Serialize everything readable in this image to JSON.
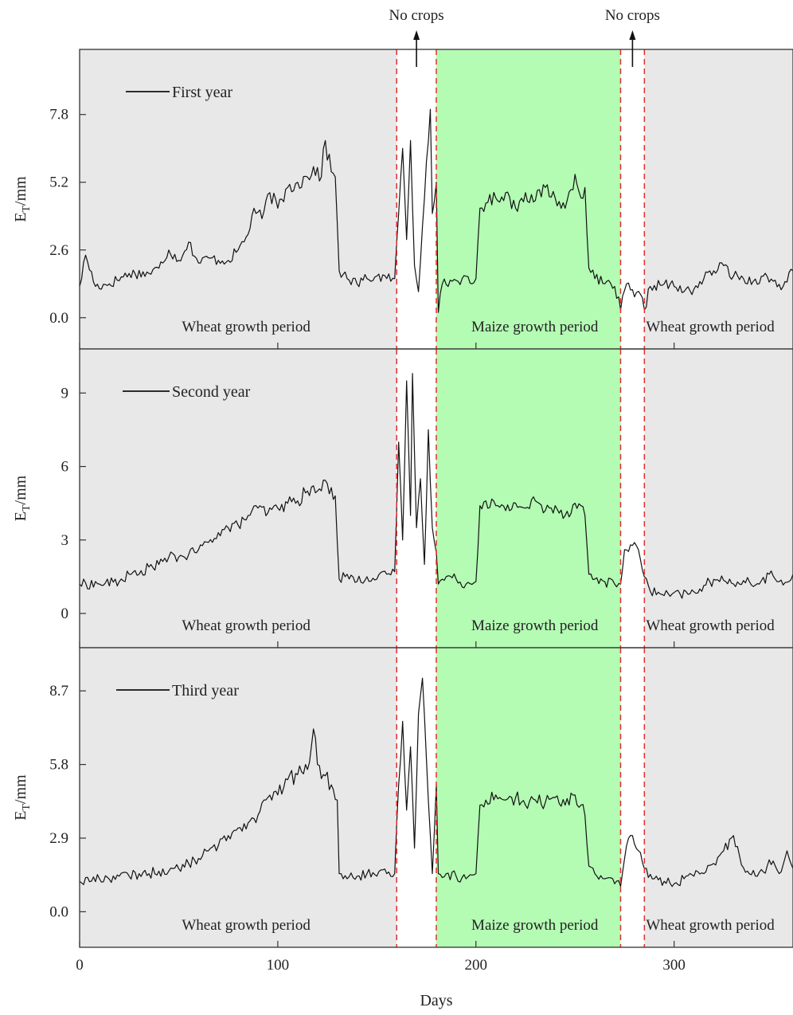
{
  "chart_data": {
    "type": "line",
    "xlabel": "Days",
    "ylabel_main": "E",
    "ylabel_sub": "T",
    "ylabel_unit": "/mm",
    "x_ticks": [
      0,
      100,
      200,
      300
    ],
    "xlim": [
      0,
      360
    ],
    "annotations": [
      "No crops",
      "No crops"
    ],
    "no_crop_arrow_days": [
      170,
      279
    ],
    "boundaries": [
      160,
      180,
      273,
      285
    ],
    "colors": {
      "wheat_shade": "#e8e8e8",
      "maize_shade": "#b4fbb4",
      "series": "#111111",
      "boundary": "#e0302f"
    },
    "panels": [
      {
        "series_name": "First year",
        "ylim": [
          -1.2,
          10.3
        ],
        "y_ticks": [
          0.0,
          2.6,
          5.2,
          7.8
        ],
        "y_tick_labels": [
          "0.0",
          "2.6",
          "5.2",
          "7.8"
        ],
        "period_labels": [
          "Wheat growth period",
          "Maize growth period",
          "Wheat growth period"
        ],
        "keypoints": [
          [
            0,
            1.2
          ],
          [
            3,
            2.4
          ],
          [
            8,
            1.2
          ],
          [
            15,
            1.3
          ],
          [
            25,
            1.7
          ],
          [
            35,
            1.7
          ],
          [
            40,
            1.9
          ],
          [
            45,
            2.6
          ],
          [
            50,
            2.2
          ],
          [
            55,
            2.9
          ],
          [
            60,
            2.1
          ],
          [
            65,
            2.3
          ],
          [
            70,
            2.2
          ],
          [
            75,
            2.2
          ],
          [
            80,
            2.6
          ],
          [
            85,
            3.2
          ],
          [
            88,
            4.2
          ],
          [
            92,
            3.8
          ],
          [
            96,
            4.8
          ],
          [
            100,
            4.2
          ],
          [
            105,
            5.0
          ],
          [
            110,
            5.2
          ],
          [
            115,
            5.4
          ],
          [
            118,
            5.8
          ],
          [
            122,
            5.4
          ],
          [
            124,
            6.8
          ],
          [
            127,
            5.6
          ],
          [
            129,
            5.4
          ],
          [
            131,
            1.8
          ],
          [
            135,
            1.5
          ],
          [
            140,
            1.3
          ],
          [
            145,
            1.5
          ],
          [
            150,
            1.6
          ],
          [
            155,
            1.5
          ],
          [
            159,
            1.5
          ],
          [
            161,
            4.0
          ],
          [
            163,
            6.5
          ],
          [
            165,
            3.0
          ],
          [
            167,
            6.8
          ],
          [
            169,
            2.0
          ],
          [
            171,
            1.0
          ],
          [
            173,
            3.5
          ],
          [
            175,
            6.0
          ],
          [
            177,
            8.0
          ],
          [
            178,
            4.0
          ],
          [
            180,
            5.2
          ],
          [
            181,
            0.2
          ],
          [
            183,
            1.3
          ],
          [
            188,
            1.4
          ],
          [
            193,
            1.5
          ],
          [
            198,
            1.3
          ],
          [
            200,
            1.5
          ],
          [
            202,
            4.2
          ],
          [
            205,
            4.4
          ],
          [
            210,
            4.6
          ],
          [
            215,
            4.8
          ],
          [
            220,
            4.2
          ],
          [
            225,
            4.8
          ],
          [
            230,
            4.5
          ],
          [
            235,
            5.0
          ],
          [
            240,
            4.6
          ],
          [
            245,
            4.2
          ],
          [
            250,
            5.5
          ],
          [
            253,
            4.6
          ],
          [
            255,
            5.0
          ],
          [
            257,
            1.9
          ],
          [
            260,
            1.5
          ],
          [
            265,
            1.3
          ],
          [
            270,
            1.2
          ],
          [
            273,
            0.3
          ],
          [
            276,
            1.3
          ],
          [
            280,
            0.8
          ],
          [
            283,
            0.9
          ],
          [
            285,
            0.3
          ],
          [
            288,
            1.2
          ],
          [
            295,
            1.3
          ],
          [
            300,
            1.2
          ],
          [
            305,
            1.0
          ],
          [
            310,
            1.1
          ],
          [
            315,
            1.5
          ],
          [
            320,
            1.8
          ],
          [
            325,
            2.0
          ],
          [
            330,
            1.6
          ],
          [
            335,
            1.5
          ],
          [
            340,
            1.4
          ],
          [
            345,
            1.6
          ],
          [
            350,
            1.4
          ],
          [
            355,
            1.2
          ],
          [
            360,
            1.8
          ]
        ]
      },
      {
        "series_name": "Second year",
        "ylim": [
          -1.4,
          10.8
        ],
        "y_ticks": [
          0,
          3,
          6,
          9
        ],
        "y_tick_labels": [
          "0",
          "3",
          "6",
          "9"
        ],
        "period_labels": [
          "Wheat growth period",
          "Maize growth period",
          "Wheat growth period"
        ],
        "keypoints": [
          [
            0,
            1.2
          ],
          [
            10,
            1.2
          ],
          [
            20,
            1.3
          ],
          [
            25,
            1.6
          ],
          [
            30,
            1.6
          ],
          [
            35,
            1.9
          ],
          [
            40,
            2.0
          ],
          [
            45,
            2.3
          ],
          [
            50,
            2.3
          ],
          [
            55,
            2.4
          ],
          [
            60,
            2.6
          ],
          [
            65,
            2.9
          ],
          [
            70,
            3.3
          ],
          [
            75,
            3.5
          ],
          [
            80,
            3.6
          ],
          [
            85,
            4.0
          ],
          [
            90,
            4.3
          ],
          [
            95,
            4.1
          ],
          [
            100,
            4.3
          ],
          [
            105,
            4.5
          ],
          [
            110,
            4.6
          ],
          [
            115,
            5.0
          ],
          [
            120,
            5.0
          ],
          [
            125,
            5.3
          ],
          [
            129,
            4.8
          ],
          [
            131,
            1.4
          ],
          [
            135,
            1.6
          ],
          [
            140,
            1.3
          ],
          [
            145,
            1.5
          ],
          [
            150,
            1.4
          ],
          [
            155,
            1.6
          ],
          [
            159,
            1.7
          ],
          [
            161,
            7.0
          ],
          [
            163,
            3.0
          ],
          [
            165,
            9.5
          ],
          [
            167,
            4.0
          ],
          [
            168,
            9.8
          ],
          [
            170,
            3.5
          ],
          [
            172,
            5.5
          ],
          [
            174,
            2.0
          ],
          [
            176,
            7.5
          ],
          [
            178,
            3.5
          ],
          [
            180,
            2.5
          ],
          [
            181,
            1.2
          ],
          [
            185,
            1.5
          ],
          [
            190,
            1.4
          ],
          [
            195,
            1.2
          ],
          [
            200,
            1.3
          ],
          [
            202,
            4.4
          ],
          [
            205,
            4.6
          ],
          [
            210,
            4.4
          ],
          [
            215,
            4.2
          ],
          [
            220,
            4.5
          ],
          [
            225,
            4.3
          ],
          [
            230,
            4.6
          ],
          [
            235,
            4.2
          ],
          [
            240,
            4.4
          ],
          [
            245,
            4.0
          ],
          [
            250,
            4.5
          ],
          [
            253,
            4.4
          ],
          [
            255,
            4.0
          ],
          [
            257,
            1.6
          ],
          [
            260,
            1.4
          ],
          [
            265,
            1.3
          ],
          [
            270,
            1.2
          ],
          [
            273,
            1.2
          ],
          [
            275,
            2.6
          ],
          [
            278,
            2.8
          ],
          [
            282,
            2.6
          ],
          [
            285,
            1.5
          ],
          [
            288,
            0.9
          ],
          [
            293,
            0.8
          ],
          [
            298,
            0.7
          ],
          [
            303,
            0.8
          ],
          [
            308,
            0.8
          ],
          [
            313,
            1.0
          ],
          [
            318,
            1.3
          ],
          [
            323,
            1.3
          ],
          [
            328,
            1.4
          ],
          [
            333,
            1.2
          ],
          [
            338,
            1.3
          ],
          [
            343,
            1.2
          ],
          [
            348,
            1.6
          ],
          [
            353,
            1.3
          ],
          [
            358,
            1.3
          ],
          [
            360,
            1.6
          ]
        ]
      },
      {
        "series_name": "Third year",
        "ylim": [
          -1.4,
          10.4
        ],
        "y_ticks": [
          0.0,
          2.9,
          5.8,
          8.7
        ],
        "y_tick_labels": [
          "0.0",
          "2.9",
          "5.8",
          "8.7"
        ],
        "period_labels": [
          "Wheat growth period",
          "Maize growth period",
          "Wheat growth period"
        ],
        "keypoints": [
          [
            0,
            1.2
          ],
          [
            10,
            1.3
          ],
          [
            20,
            1.4
          ],
          [
            25,
            1.4
          ],
          [
            30,
            1.5
          ],
          [
            35,
            1.5
          ],
          [
            40,
            1.6
          ],
          [
            45,
            1.6
          ],
          [
            50,
            1.7
          ],
          [
            55,
            1.9
          ],
          [
            60,
            2.1
          ],
          [
            65,
            2.4
          ],
          [
            70,
            2.6
          ],
          [
            75,
            3.0
          ],
          [
            80,
            3.3
          ],
          [
            85,
            3.5
          ],
          [
            90,
            3.8
          ],
          [
            95,
            4.5
          ],
          [
            100,
            4.6
          ],
          [
            105,
            5.2
          ],
          [
            110,
            5.4
          ],
          [
            115,
            5.6
          ],
          [
            118,
            7.2
          ],
          [
            120,
            5.8
          ],
          [
            123,
            5.4
          ],
          [
            127,
            5.0
          ],
          [
            130,
            4.4
          ],
          [
            131,
            1.5
          ],
          [
            135,
            1.3
          ],
          [
            140,
            1.4
          ],
          [
            145,
            1.5
          ],
          [
            150,
            1.4
          ],
          [
            155,
            1.5
          ],
          [
            159,
            1.5
          ],
          [
            161,
            5.0
          ],
          [
            163,
            7.5
          ],
          [
            165,
            4.0
          ],
          [
            167,
            6.5
          ],
          [
            169,
            2.5
          ],
          [
            171,
            7.8
          ],
          [
            173,
            9.2
          ],
          [
            175,
            6.0
          ],
          [
            177,
            3.0
          ],
          [
            178,
            1.5
          ],
          [
            180,
            5.0
          ],
          [
            181,
            1.5
          ],
          [
            185,
            1.5
          ],
          [
            190,
            1.4
          ],
          [
            195,
            1.3
          ],
          [
            200,
            1.5
          ],
          [
            202,
            4.2
          ],
          [
            205,
            4.4
          ],
          [
            210,
            4.6
          ],
          [
            215,
            4.4
          ],
          [
            220,
            4.5
          ],
          [
            225,
            4.2
          ],
          [
            230,
            4.4
          ],
          [
            235,
            4.3
          ],
          [
            240,
            4.5
          ],
          [
            245,
            4.2
          ],
          [
            250,
            4.6
          ],
          [
            253,
            4.2
          ],
          [
            255,
            3.8
          ],
          [
            257,
            1.8
          ],
          [
            260,
            1.5
          ],
          [
            265,
            1.3
          ],
          [
            270,
            1.1
          ],
          [
            273,
            1.0
          ],
          [
            276,
            2.6
          ],
          [
            279,
            3.0
          ],
          [
            282,
            2.4
          ],
          [
            285,
            1.7
          ],
          [
            290,
            1.3
          ],
          [
            295,
            1.2
          ],
          [
            300,
            1.1
          ],
          [
            305,
            1.3
          ],
          [
            310,
            1.4
          ],
          [
            315,
            1.5
          ],
          [
            320,
            1.9
          ],
          [
            325,
            2.4
          ],
          [
            330,
            3.0
          ],
          [
            333,
            2.2
          ],
          [
            337,
            1.6
          ],
          [
            342,
            1.4
          ],
          [
            347,
            1.8
          ],
          [
            350,
            2.0
          ],
          [
            353,
            1.5
          ],
          [
            357,
            2.4
          ],
          [
            360,
            1.7
          ]
        ]
      }
    ]
  }
}
